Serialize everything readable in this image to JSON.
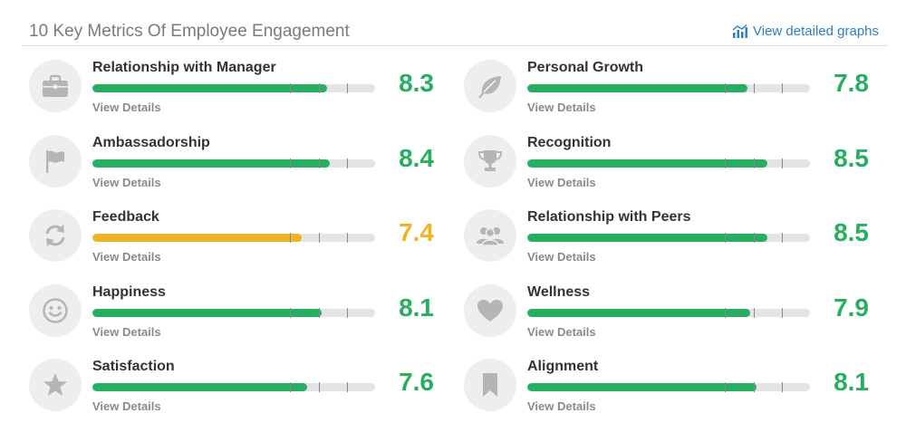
{
  "header": {
    "title": "10 Key Metrics Of Employee Engagement",
    "link_label": "View detailed graphs"
  },
  "colors": {
    "good": "#27ae60",
    "warn": "#f0b323",
    "icon": "#b5b5b5"
  },
  "scale_max": 10,
  "metrics": [
    {
      "label": "Relationship with Manager",
      "score": "8.3",
      "value": 8.3,
      "status": "good",
      "icon": "briefcase-icon",
      "details": "View Details"
    },
    {
      "label": "Ambassadorship",
      "score": "8.4",
      "value": 8.4,
      "status": "good",
      "icon": "flag-icon",
      "details": "View Details"
    },
    {
      "label": "Feedback",
      "score": "7.4",
      "value": 7.4,
      "status": "warn",
      "icon": "refresh-icon",
      "details": "View Details"
    },
    {
      "label": "Happiness",
      "score": "8.1",
      "value": 8.1,
      "status": "good",
      "icon": "smiley-icon",
      "details": "View Details"
    },
    {
      "label": "Satisfaction",
      "score": "7.6",
      "value": 7.6,
      "status": "good",
      "icon": "star-icon",
      "details": "View Details"
    },
    {
      "label": "Personal Growth",
      "score": "7.8",
      "value": 7.8,
      "status": "good",
      "icon": "leaf-icon",
      "details": "View Details"
    },
    {
      "label": "Recognition",
      "score": "8.5",
      "value": 8.5,
      "status": "good",
      "icon": "trophy-icon",
      "details": "View Details"
    },
    {
      "label": "Relationship with Peers",
      "score": "8.5",
      "value": 8.5,
      "status": "good",
      "icon": "people-icon",
      "details": "View Details"
    },
    {
      "label": "Wellness",
      "score": "7.9",
      "value": 7.9,
      "status": "good",
      "icon": "heart-icon",
      "details": "View Details"
    },
    {
      "label": "Alignment",
      "score": "8.1",
      "value": 8.1,
      "status": "good",
      "icon": "bookmark-icon",
      "details": "View Details"
    }
  ]
}
